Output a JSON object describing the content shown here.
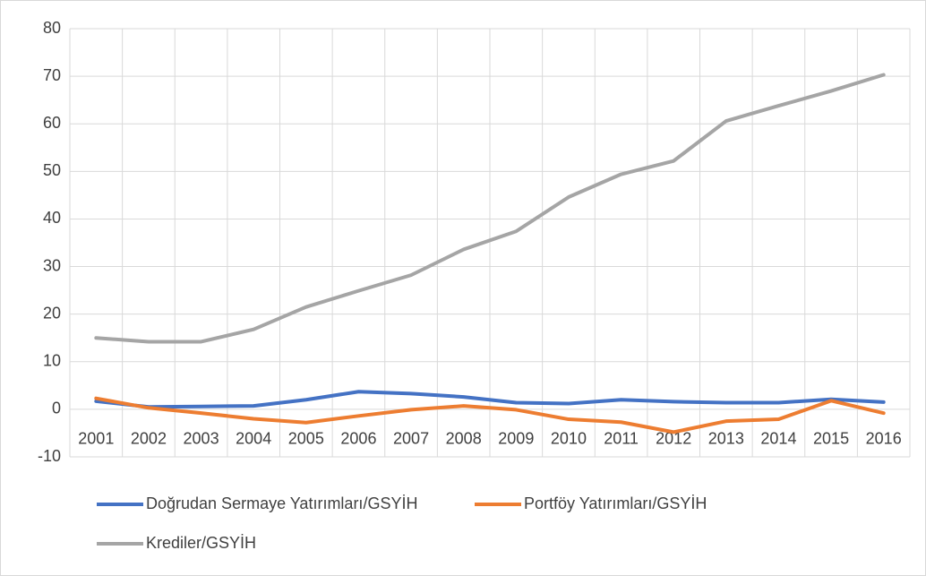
{
  "chart_data": {
    "type": "line",
    "categories": [
      "2001",
      "2002",
      "2003",
      "2004",
      "2005",
      "2006",
      "2007",
      "2008",
      "2009",
      "2010",
      "2011",
      "2012",
      "2013",
      "2014",
      "2015",
      "2016"
    ],
    "series": [
      {
        "name": "Doğrudan Sermaye Yatırımları/GSYİH",
        "color": "#4472c4",
        "values": [
          1.7,
          0.5,
          0.6,
          0.7,
          2.0,
          3.7,
          3.3,
          2.6,
          1.4,
          1.2,
          2.0,
          1.6,
          1.4,
          1.4,
          2.1,
          1.5
        ]
      },
      {
        "name": "Portföy Yatırımları/GSYİH",
        "color": "#ed7d31",
        "values": [
          2.3,
          0.3,
          -0.8,
          -2.0,
          -2.8,
          -1.4,
          -0.1,
          0.7,
          -0.1,
          -2.1,
          -2.7,
          -4.8,
          -2.5,
          -2.1,
          1.8,
          -0.8
        ]
      },
      {
        "name": "Krediler/GSYİH",
        "color": "#a5a5a5",
        "values": [
          15.0,
          14.2,
          14.2,
          16.8,
          21.5,
          24.9,
          28.2,
          33.6,
          37.4,
          44.6,
          49.4,
          52.2,
          60.6,
          63.8,
          66.9,
          70.3
        ]
      }
    ],
    "ylim": [
      -10,
      80
    ],
    "yticks": [
      -10,
      0,
      10,
      20,
      30,
      40,
      50,
      60,
      70,
      80
    ],
    "grid": true,
    "legend": "bottom"
  }
}
